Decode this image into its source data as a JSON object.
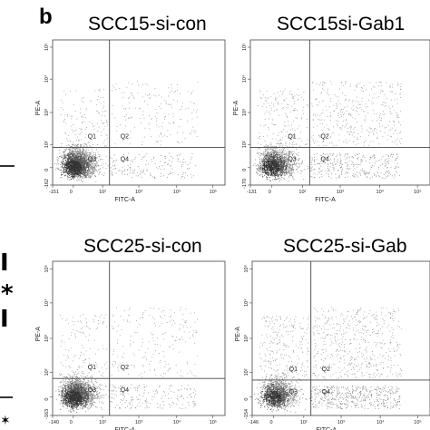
{
  "panel_letter": "b",
  "fragments": {
    "mark1": "I",
    "mark2": "*",
    "mark3": "I",
    "mark4": "✶"
  },
  "chart_data": [
    {
      "type": "scatter",
      "title": "SCC15-si-con",
      "xlabel": "FITC-A",
      "ylabel": "PE-A",
      "x_ticks": [
        "-151",
        "0",
        "10²",
        "10³",
        "10⁴",
        "10⁵"
      ],
      "y_ticks": [
        "-162",
        "0",
        "10²",
        "10³",
        "10⁴",
        "10⁵"
      ],
      "quadrants": [
        "Q1",
        "Q2",
        "Q3",
        "Q4"
      ],
      "gate": {
        "x": 0.33,
        "y": 0.74
      },
      "density": {
        "q3": 0.82,
        "q4": 0.06,
        "q1": 0.05,
        "q2": 0.07
      }
    },
    {
      "type": "scatter",
      "title": "SCC15si-Gab1",
      "xlabel": "FITC-A",
      "ylabel": "PE-A",
      "x_ticks": [
        "-131",
        "0",
        "10²",
        "10³",
        "10⁴",
        "10⁵"
      ],
      "y_ticks": [
        "-170",
        "0",
        "10²",
        "10³",
        "10⁴",
        "10⁵"
      ],
      "quadrants": [
        "Q1",
        "Q2",
        "Q3",
        "Q4"
      ],
      "gate": {
        "x": 0.33,
        "y": 0.74
      },
      "density": {
        "q3": 0.66,
        "q4": 0.12,
        "q1": 0.07,
        "q2": 0.15
      }
    },
    {
      "type": "scatter",
      "title": "SCC25-si-con",
      "xlabel": "FITC-A",
      "ylabel": "PE-A",
      "x_ticks": [
        "-140",
        "0",
        "10²",
        "10³",
        "10⁴",
        "10⁵"
      ],
      "y_ticks": [
        "-163",
        "0",
        "10²",
        "10³",
        "10⁴",
        "10⁵"
      ],
      "quadrants": [
        "Q1",
        "Q2",
        "Q3",
        "Q4"
      ],
      "gate": {
        "x": 0.33,
        "y": 0.76
      },
      "density": {
        "q3": 0.8,
        "q4": 0.07,
        "q1": 0.05,
        "q2": 0.08
      }
    },
    {
      "type": "scatter",
      "title": "SCC25-si-Gab",
      "xlabel": "FITC-A",
      "ylabel": "PE-A",
      "x_ticks": [
        "-146",
        "0",
        "10²",
        "10³",
        "10⁴",
        "10⁵"
      ],
      "y_ticks": [
        "-154",
        "0",
        "10²",
        "10³",
        "10⁴",
        "10⁵"
      ],
      "quadrants": [
        "Q1",
        "Q2",
        "Q3",
        "Q4"
      ],
      "gate": {
        "x": 0.33,
        "y": 0.77
      },
      "density": {
        "q3": 0.52,
        "q4": 0.18,
        "q1": 0.1,
        "q2": 0.2
      }
    }
  ]
}
